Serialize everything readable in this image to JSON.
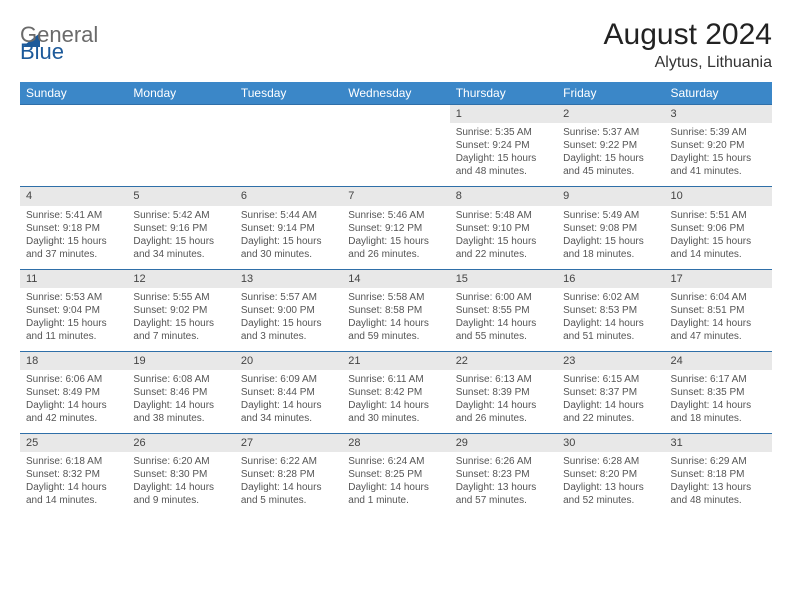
{
  "logo": {
    "part1": "General",
    "part2": "Blue"
  },
  "title": "August 2024",
  "location": "Alytus, Lithuania",
  "headers": [
    "Sunday",
    "Monday",
    "Tuesday",
    "Wednesday",
    "Thursday",
    "Friday",
    "Saturday"
  ],
  "colors": {
    "header_blue": "#3b87c8",
    "divider_blue": "#2f6fa8",
    "light_gray": "#e8e8e8",
    "logo_gray": "#6a6a6a",
    "logo_blue": "#1d5a9a"
  },
  "weeks": [
    {
      "nums": [
        "",
        "",
        "",
        "",
        "1",
        "2",
        "3"
      ],
      "cells": [
        "",
        "",
        "",
        "",
        "Sunrise: 5:35 AM\nSunset: 9:24 PM\nDaylight: 15 hours and 48 minutes.",
        "Sunrise: 5:37 AM\nSunset: 9:22 PM\nDaylight: 15 hours and 45 minutes.",
        "Sunrise: 5:39 AM\nSunset: 9:20 PM\nDaylight: 15 hours and 41 minutes."
      ]
    },
    {
      "nums": [
        "4",
        "5",
        "6",
        "7",
        "8",
        "9",
        "10"
      ],
      "cells": [
        "Sunrise: 5:41 AM\nSunset: 9:18 PM\nDaylight: 15 hours and 37 minutes.",
        "Sunrise: 5:42 AM\nSunset: 9:16 PM\nDaylight: 15 hours and 34 minutes.",
        "Sunrise: 5:44 AM\nSunset: 9:14 PM\nDaylight: 15 hours and 30 minutes.",
        "Sunrise: 5:46 AM\nSunset: 9:12 PM\nDaylight: 15 hours and 26 minutes.",
        "Sunrise: 5:48 AM\nSunset: 9:10 PM\nDaylight: 15 hours and 22 minutes.",
        "Sunrise: 5:49 AM\nSunset: 9:08 PM\nDaylight: 15 hours and 18 minutes.",
        "Sunrise: 5:51 AM\nSunset: 9:06 PM\nDaylight: 15 hours and 14 minutes."
      ]
    },
    {
      "nums": [
        "11",
        "12",
        "13",
        "14",
        "15",
        "16",
        "17"
      ],
      "cells": [
        "Sunrise: 5:53 AM\nSunset: 9:04 PM\nDaylight: 15 hours and 11 minutes.",
        "Sunrise: 5:55 AM\nSunset: 9:02 PM\nDaylight: 15 hours and 7 minutes.",
        "Sunrise: 5:57 AM\nSunset: 9:00 PM\nDaylight: 15 hours and 3 minutes.",
        "Sunrise: 5:58 AM\nSunset: 8:58 PM\nDaylight: 14 hours and 59 minutes.",
        "Sunrise: 6:00 AM\nSunset: 8:55 PM\nDaylight: 14 hours and 55 minutes.",
        "Sunrise: 6:02 AM\nSunset: 8:53 PM\nDaylight: 14 hours and 51 minutes.",
        "Sunrise: 6:04 AM\nSunset: 8:51 PM\nDaylight: 14 hours and 47 minutes."
      ]
    },
    {
      "nums": [
        "18",
        "19",
        "20",
        "21",
        "22",
        "23",
        "24"
      ],
      "cells": [
        "Sunrise: 6:06 AM\nSunset: 8:49 PM\nDaylight: 14 hours and 42 minutes.",
        "Sunrise: 6:08 AM\nSunset: 8:46 PM\nDaylight: 14 hours and 38 minutes.",
        "Sunrise: 6:09 AM\nSunset: 8:44 PM\nDaylight: 14 hours and 34 minutes.",
        "Sunrise: 6:11 AM\nSunset: 8:42 PM\nDaylight: 14 hours and 30 minutes.",
        "Sunrise: 6:13 AM\nSunset: 8:39 PM\nDaylight: 14 hours and 26 minutes.",
        "Sunrise: 6:15 AM\nSunset: 8:37 PM\nDaylight: 14 hours and 22 minutes.",
        "Sunrise: 6:17 AM\nSunset: 8:35 PM\nDaylight: 14 hours and 18 minutes."
      ]
    },
    {
      "nums": [
        "25",
        "26",
        "27",
        "28",
        "29",
        "30",
        "31"
      ],
      "cells": [
        "Sunrise: 6:18 AM\nSunset: 8:32 PM\nDaylight: 14 hours and 14 minutes.",
        "Sunrise: 6:20 AM\nSunset: 8:30 PM\nDaylight: 14 hours and 9 minutes.",
        "Sunrise: 6:22 AM\nSunset: 8:28 PM\nDaylight: 14 hours and 5 minutes.",
        "Sunrise: 6:24 AM\nSunset: 8:25 PM\nDaylight: 14 hours and 1 minute.",
        "Sunrise: 6:26 AM\nSunset: 8:23 PM\nDaylight: 13 hours and 57 minutes.",
        "Sunrise: 6:28 AM\nSunset: 8:20 PM\nDaylight: 13 hours and 52 minutes.",
        "Sunrise: 6:29 AM\nSunset: 8:18 PM\nDaylight: 13 hours and 48 minutes."
      ]
    }
  ]
}
